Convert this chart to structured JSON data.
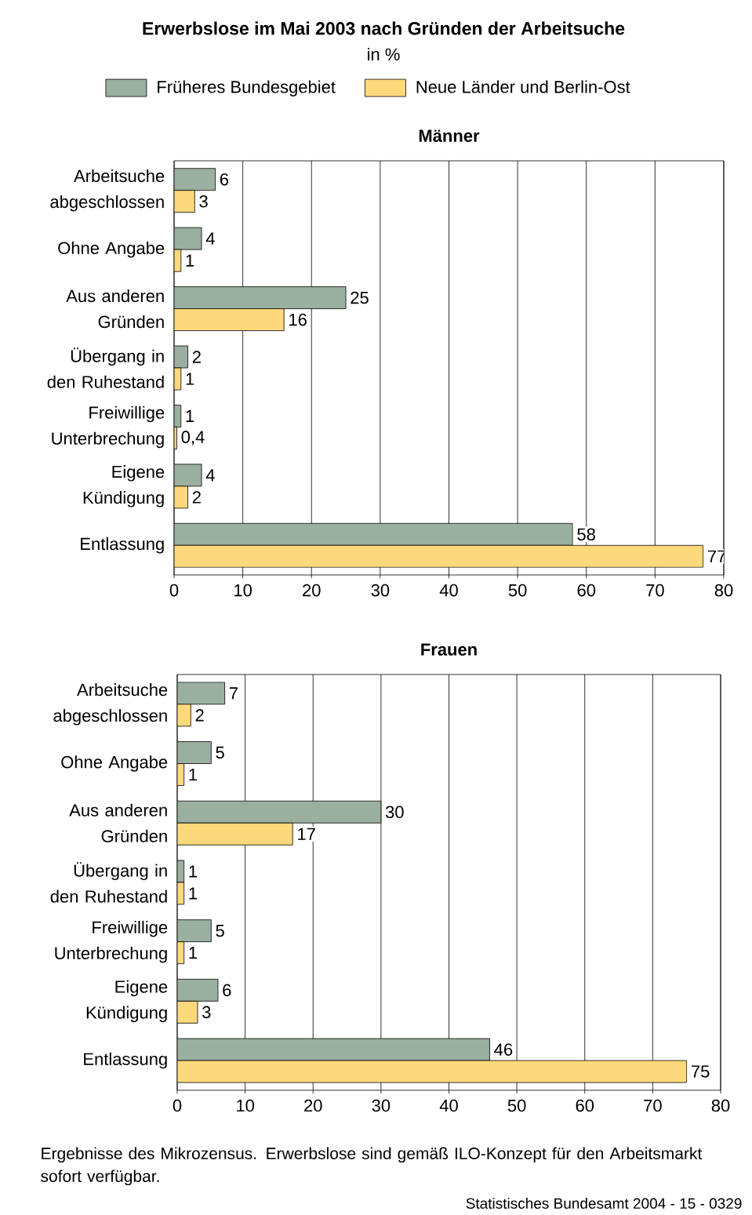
{
  "chart_data": [
    {
      "type": "bar",
      "orientation": "horizontal",
      "title": "Männer",
      "legend": "top",
      "grid": "x",
      "xlim": [
        0,
        80
      ],
      "xticks": [
        0,
        10,
        20,
        30,
        40,
        50,
        60,
        70,
        80
      ],
      "categories": [
        "Arbeitsuche abgeschlossen",
        "Ohne Angabe",
        "Aus anderen Gründen",
        "Übergang in den Ruhestand",
        "Freiwillige Unterbrechung",
        "Eigene Kündigung",
        "Entlassung"
      ],
      "series": [
        {
          "name": "Früheres Bundesgebiet",
          "color": "#9bb0a0",
          "values": [
            6,
            4,
            25,
            2,
            1,
            4,
            58
          ],
          "value_labels": [
            "6",
            "4",
            "25",
            "2",
            "1",
            "4",
            "58"
          ]
        },
        {
          "name": "Neue Länder und Berlin-Ost",
          "color": "#fdd97c",
          "values": [
            3,
            1,
            16,
            1,
            0.4,
            2,
            77
          ],
          "value_labels": [
            "3",
            "1",
            "16",
            "1",
            "0,4",
            "2",
            "77"
          ]
        }
      ],
      "annotations": [
        "Erwerbslose im Mai 2003 nach Gründen der Arbeitsuche",
        "in %"
      ]
    },
    {
      "type": "bar",
      "orientation": "horizontal",
      "title": "Frauen",
      "grid": "x",
      "xlim": [
        0,
        80
      ],
      "xticks": [
        0,
        10,
        20,
        30,
        40,
        50,
        60,
        70,
        80
      ],
      "categories": [
        "Arbeitsuche abgeschlossen",
        "Ohne Angabe",
        "Aus anderen Gründen",
        "Übergang in den Ruhestand",
        "Freiwillige Unterbrechung",
        "Eigene Kündigung",
        "Entlassung"
      ],
      "series": [
        {
          "color": "#9bb0a0",
          "values": [
            7,
            5,
            30,
            1,
            5,
            6,
            46
          ],
          "value_labels": [
            "7",
            "5",
            "30",
            "1",
            "5",
            "6",
            "46"
          ]
        },
        {
          "color": "#fdd97c",
          "values": [
            2,
            1,
            17,
            1,
            1,
            3,
            75
          ],
          "value_labels": [
            "2",
            "1",
            "17",
            "1",
            "1",
            "3",
            "75"
          ]
        }
      ],
      "annotations": [
        "Ergebnisse des Mikrozensus. Erwerbslose sind gemäß ILO-Konzept für den Arbeitsmarkt sofort verfügbar.",
        "Statistisches Bundesamt 2004 - 15 - 0329"
      ]
    }
  ]
}
